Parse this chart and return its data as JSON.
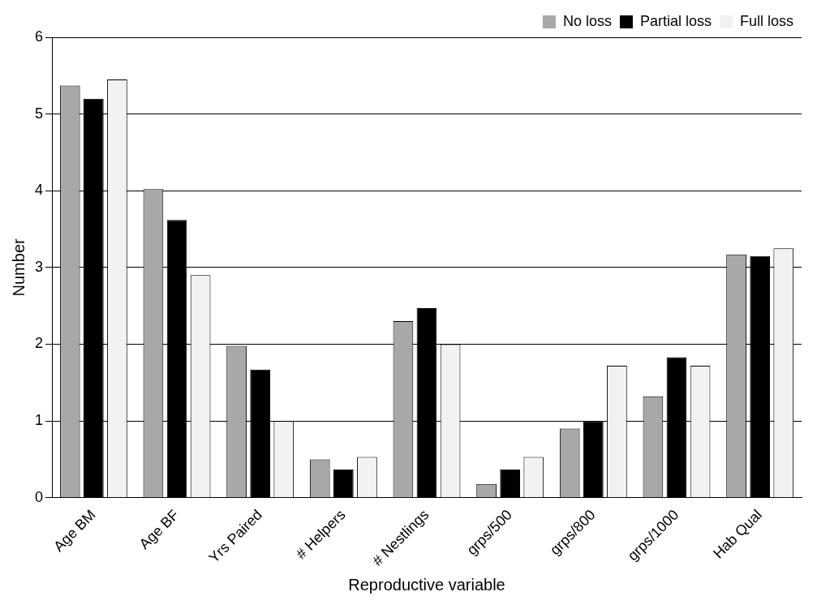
{
  "chart_data": {
    "type": "bar",
    "xlabel": "Reproductive variable",
    "ylabel": "Number",
    "categories": [
      "Age BM",
      "Age BF",
      "Yrs Paired",
      "# Helpers",
      "# Nestlings",
      "grps/500",
      "grps/800",
      "grps/1000",
      "Hab Qual"
    ],
    "series": [
      {
        "name": "No loss",
        "color": "#a8a8a8",
        "values": [
          5.37,
          4.02,
          1.98,
          0.5,
          2.3,
          0.18,
          0.9,
          1.32,
          3.17
        ]
      },
      {
        "name": "Partial loss",
        "color": "#000000",
        "values": [
          5.2,
          3.62,
          1.67,
          0.37,
          2.47,
          0.37,
          1.0,
          1.83,
          3.15
        ]
      },
      {
        "name": "Full loss",
        "color": "#f2f2f2",
        "values": [
          5.45,
          2.9,
          1.0,
          0.53,
          2.0,
          0.53,
          1.72,
          1.72,
          3.25
        ]
      }
    ],
    "ylim": [
      0,
      6
    ],
    "yticks": [
      0,
      1,
      2,
      3,
      4,
      5,
      6
    ],
    "grid": "y",
    "legend": "top right"
  }
}
